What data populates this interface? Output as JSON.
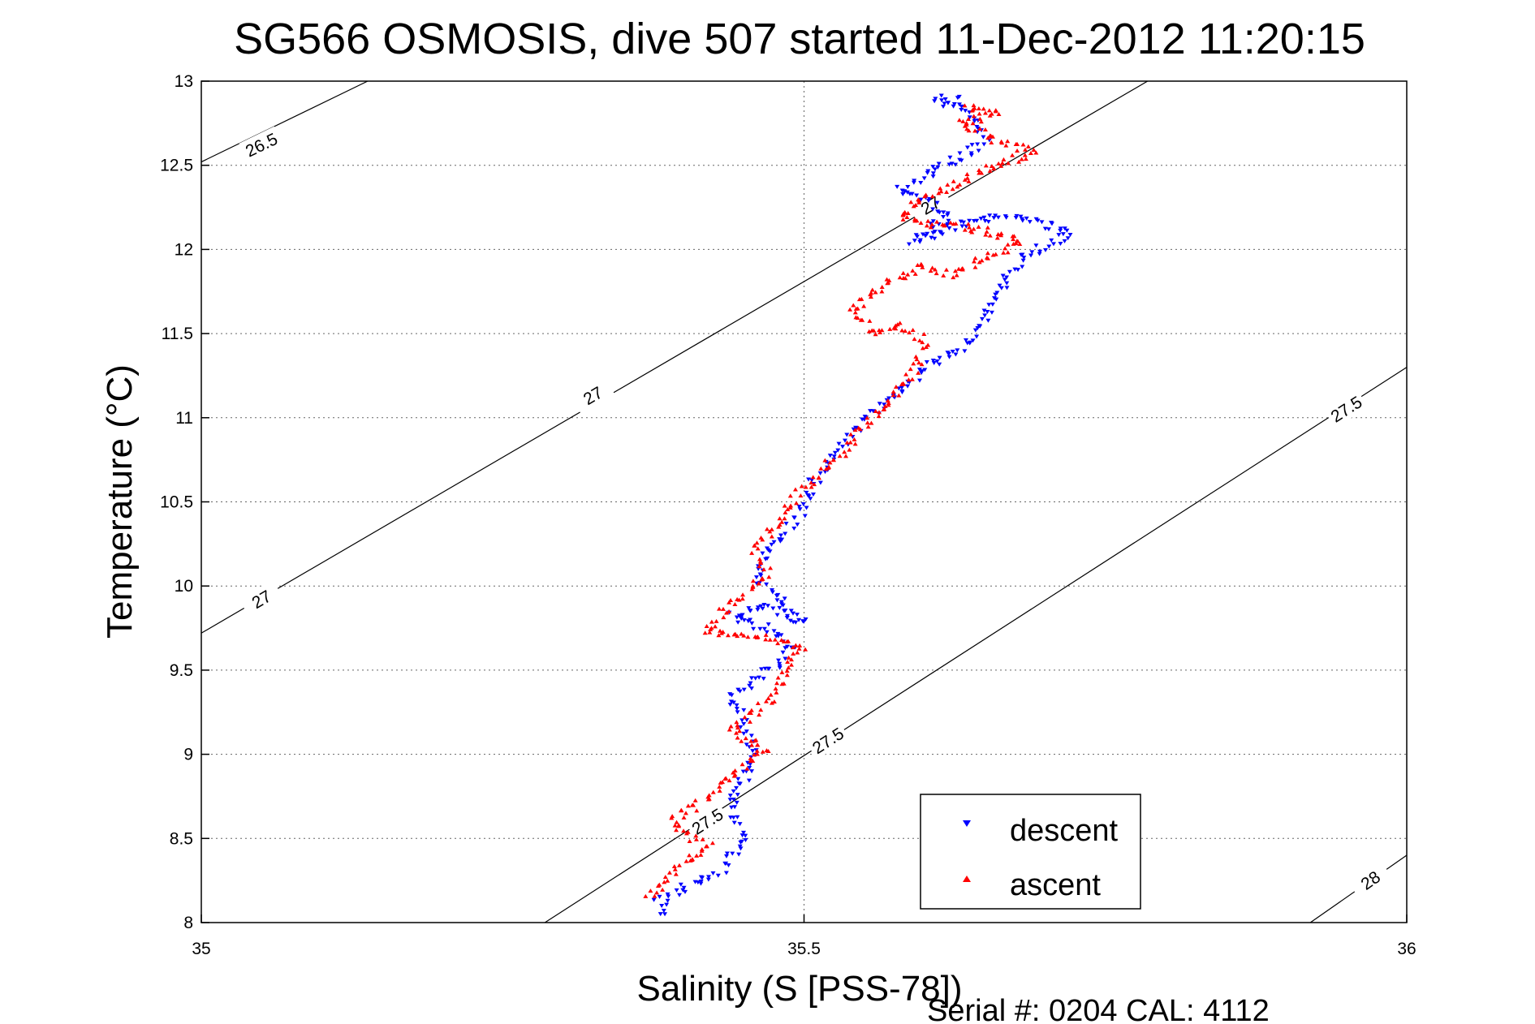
{
  "chart_data": {
    "type": "scatter",
    "title": "SG566 OSMOSIS, dive 507 started 11-Dec-2012 11:20:15",
    "xlabel": "Salinity (S [PSS-78])",
    "ylabel": "Temperature (°C)",
    "footer": "Serial #: 0204  CAL: 4112",
    "xlim": [
      35,
      36
    ],
    "ylim": [
      8,
      13
    ],
    "x_ticks": [
      "35",
      "35.5",
      "36"
    ],
    "y_ticks": [
      "8",
      "8.5",
      "9",
      "9.5",
      "10",
      "10.5",
      "11",
      "11.5",
      "12",
      "12.5",
      "13"
    ],
    "grid": true,
    "legend_position": "bottom-right",
    "density_contours": [
      {
        "label": "26.5",
        "points": [
          [
            35.0,
            12.52
          ],
          [
            35.138,
            13.0
          ]
        ],
        "label_at": [
          35.05,
          12.62
        ]
      },
      {
        "label": "27",
        "points": [
          [
            35.0,
            9.72
          ],
          [
            35.785,
            13.0
          ]
        ],
        "label_at": [
          35.05,
          9.92
        ]
      },
      {
        "label": "27",
        "points": [
          [
            35.0,
            9.72
          ],
          [
            35.785,
            13.0
          ]
        ],
        "label_at": [
          35.325,
          11.13
        ]
      },
      {
        "label": "27",
        "points": [
          [
            35.0,
            9.72
          ],
          [
            35.785,
            13.0
          ]
        ],
        "label_at": [
          35.605,
          12.26
        ]
      },
      {
        "label": "27.5",
        "points": [
          [
            35.285,
            8.0
          ],
          [
            36.0,
            11.3
          ]
        ],
        "label_at": [
          35.52,
          9.08
        ]
      },
      {
        "label": "27.5",
        "points": [
          [
            35.285,
            8.0
          ],
          [
            36.0,
            11.3
          ]
        ],
        "label_at": [
          35.42,
          8.6
        ]
      },
      {
        "label": "27.5",
        "points": [
          [
            35.285,
            8.0
          ],
          [
            36.0,
            11.3
          ]
        ],
        "label_at": [
          35.95,
          11.05
        ]
      },
      {
        "label": "28",
        "points": [
          [
            35.92,
            8.0
          ],
          [
            36.0,
            8.4
          ]
        ],
        "label_at": [
          35.97,
          8.25
        ]
      }
    ],
    "series": [
      {
        "name": "descent",
        "color": "#0000ff",
        "marker": "triangle-down",
        "path": [
          [
            35.38,
            8.06
          ],
          [
            35.38,
            8.12
          ],
          [
            35.4,
            8.2
          ],
          [
            35.43,
            8.3
          ],
          [
            35.45,
            8.5
          ],
          [
            35.44,
            8.7
          ],
          [
            35.45,
            8.85
          ],
          [
            35.46,
            9.0
          ],
          [
            35.45,
            9.2
          ],
          [
            35.44,
            9.35
          ],
          [
            35.46,
            9.45
          ],
          [
            35.48,
            9.55
          ],
          [
            35.49,
            9.65
          ],
          [
            35.47,
            9.75
          ],
          [
            35.44,
            9.82
          ],
          [
            35.47,
            9.87
          ],
          [
            35.5,
            9.78
          ],
          [
            35.46,
            10.05
          ],
          [
            35.47,
            10.2
          ],
          [
            35.5,
            10.45
          ],
          [
            35.51,
            10.65
          ],
          [
            35.54,
            10.9
          ],
          [
            35.56,
            11.05
          ],
          [
            35.58,
            11.15
          ],
          [
            35.6,
            11.3
          ],
          [
            35.64,
            11.45
          ],
          [
            35.65,
            11.6
          ],
          [
            35.66,
            11.75
          ],
          [
            35.68,
            11.95
          ],
          [
            35.72,
            12.1
          ],
          [
            35.67,
            12.2
          ],
          [
            35.63,
            12.15
          ],
          [
            35.59,
            12.05
          ],
          [
            35.62,
            12.2
          ],
          [
            35.6,
            12.3
          ],
          [
            35.58,
            12.35
          ],
          [
            35.6,
            12.45
          ],
          [
            35.63,
            12.55
          ],
          [
            35.65,
            12.65
          ],
          [
            35.64,
            12.8
          ],
          [
            35.61,
            12.9
          ],
          [
            35.63,
            12.88
          ]
        ]
      },
      {
        "name": "ascent",
        "color": "#ff0000",
        "marker": "triangle-up",
        "path": [
          [
            35.37,
            8.15
          ],
          [
            35.39,
            8.28
          ],
          [
            35.42,
            8.45
          ],
          [
            35.39,
            8.6
          ],
          [
            35.42,
            8.75
          ],
          [
            35.44,
            8.88
          ],
          [
            35.47,
            9.02
          ],
          [
            35.44,
            9.15
          ],
          [
            35.47,
            9.3
          ],
          [
            35.48,
            9.45
          ],
          [
            35.5,
            9.62
          ],
          [
            35.47,
            9.7
          ],
          [
            35.42,
            9.72
          ],
          [
            35.44,
            9.9
          ],
          [
            35.47,
            10.05
          ],
          [
            35.46,
            10.2
          ],
          [
            35.48,
            10.4
          ],
          [
            35.5,
            10.58
          ],
          [
            35.53,
            10.78
          ],
          [
            35.55,
            10.95
          ],
          [
            35.57,
            11.08
          ],
          [
            35.59,
            11.25
          ],
          [
            35.6,
            11.45
          ],
          [
            35.58,
            11.55
          ],
          [
            35.56,
            11.5
          ],
          [
            35.54,
            11.65
          ],
          [
            35.57,
            11.8
          ],
          [
            35.6,
            11.9
          ],
          [
            35.62,
            11.85
          ],
          [
            35.65,
            11.95
          ],
          [
            35.68,
            12.05
          ],
          [
            35.64,
            12.12
          ],
          [
            35.6,
            12.15
          ],
          [
            35.58,
            12.2
          ],
          [
            35.6,
            12.3
          ],
          [
            35.63,
            12.4
          ],
          [
            35.66,
            12.5
          ],
          [
            35.69,
            12.57
          ],
          [
            35.66,
            12.65
          ],
          [
            35.63,
            12.75
          ],
          [
            35.66,
            12.82
          ],
          [
            35.63,
            12.85
          ]
        ]
      }
    ]
  }
}
